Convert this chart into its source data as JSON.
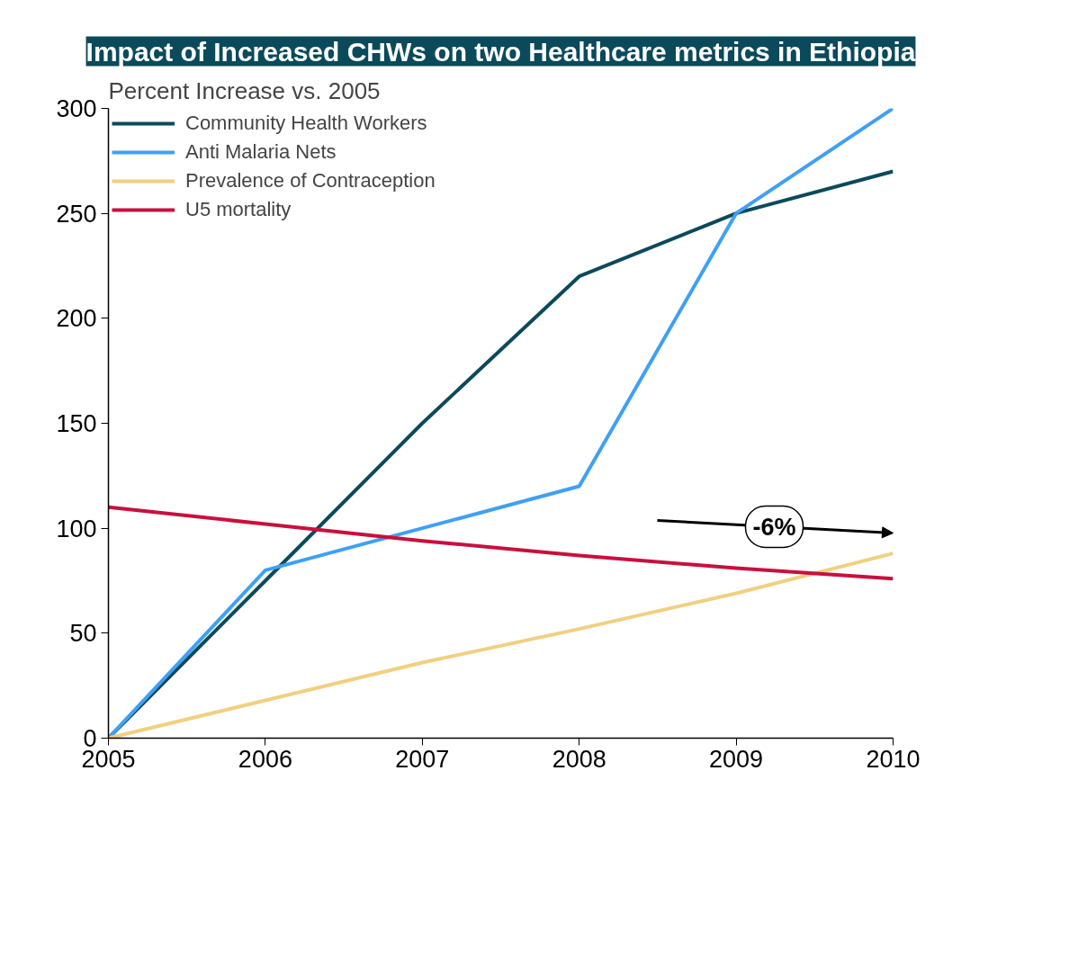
{
  "chart_data": {
    "type": "line",
    "title": "Impact of Increased CHWs on two Healthcare metrics in Ethiopia",
    "ylabel": "Percent Increase vs. 2005",
    "x": [
      2005,
      2006,
      2007,
      2008,
      2009,
      2010
    ],
    "series": [
      {
        "name": "Community Health Workers",
        "color": "#0b4a5a",
        "values": [
          0,
          75,
          150,
          220,
          250,
          270
        ]
      },
      {
        "name": "Anti Malaria Nets",
        "color": "#3fa0f5",
        "values": [
          0,
          80,
          100,
          120,
          250,
          300
        ]
      },
      {
        "name": "Prevalence of Contraception",
        "color": "#f0d080",
        "values": [
          0,
          18,
          36,
          52,
          69,
          88
        ]
      },
      {
        "name": "U5 mortality",
        "color": "#c8103e",
        "values": [
          110,
          102,
          94,
          87,
          81,
          76
        ]
      }
    ],
    "annotations": [
      "-6%"
    ],
    "xlim": [
      2005,
      2010
    ],
    "xticks": [
      2005,
      2006,
      2007,
      2008,
      2009,
      2010
    ],
    "ylim": [
      0,
      300
    ],
    "yticks": [
      0,
      50,
      100,
      150,
      200,
      250,
      300
    ],
    "grid": false,
    "legend": "top left",
    "marker": "none",
    "line_style": "solid"
  }
}
